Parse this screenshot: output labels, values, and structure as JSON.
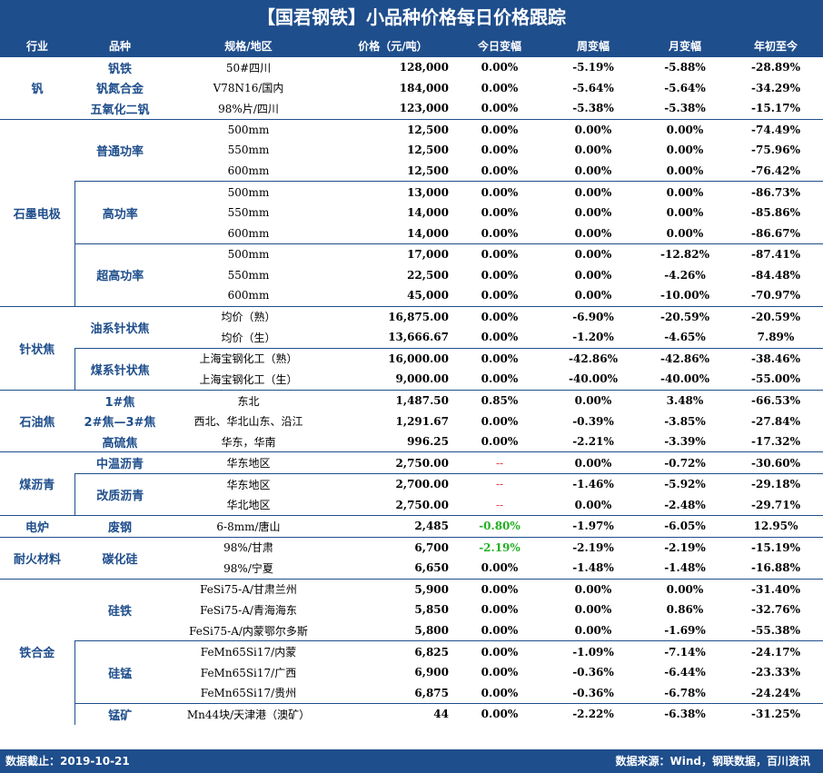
{
  "title": "【国君钢铁】小品种价格每日价格跟踪",
  "headers": [
    "行业",
    "品种",
    "规格/地区",
    "价格（元/吨）",
    "今日变幅",
    "周变幅",
    "月变幅",
    "年初至今"
  ],
  "industries": [
    "钒",
    "石墨电极",
    "针状焦",
    "石油焦",
    "煤沥青",
    "电炉",
    "耐火材料",
    "铁合金"
  ],
  "varieties": [
    "钒铁",
    "钒氮合金",
    "五氧化二钒",
    "普通功率",
    "高功率",
    "超高功率",
    "油系针状焦",
    "煤系针状焦",
    "1#焦",
    "2#焦—3#焦",
    "高硫焦",
    "中温沥青",
    "改质沥青",
    "废钢",
    "碳化硅",
    "硅铁",
    "硅锰",
    "锰矿"
  ],
  "rows": [
    {
      "spec": "50#四川",
      "price": "128,000",
      "today": "0.00%",
      "week": "-5.19%",
      "month": "-5.88%",
      "ytd": "-28.89%"
    },
    {
      "spec": "V78N16/国内",
      "price": "184,000",
      "today": "0.00%",
      "week": "-5.64%",
      "month": "-5.64%",
      "ytd": "-34.29%"
    },
    {
      "spec": "98%片/四川",
      "price": "123,000",
      "today": "0.00%",
      "week": "-5.38%",
      "month": "-5.38%",
      "ytd": "-15.17%"
    },
    {
      "spec": "500mm",
      "price": "12,500",
      "today": "0.00%",
      "week": "0.00%",
      "month": "0.00%",
      "ytd": "-74.49%"
    },
    {
      "spec": "550mm",
      "price": "12,500",
      "today": "0.00%",
      "week": "0.00%",
      "month": "0.00%",
      "ytd": "-75.96%"
    },
    {
      "spec": "600mm",
      "price": "12,500",
      "today": "0.00%",
      "week": "0.00%",
      "month": "0.00%",
      "ytd": "-76.42%"
    },
    {
      "spec": "500mm",
      "price": "13,000",
      "today": "0.00%",
      "week": "0.00%",
      "month": "0.00%",
      "ytd": "-86.73%"
    },
    {
      "spec": "550mm",
      "price": "14,000",
      "today": "0.00%",
      "week": "0.00%",
      "month": "0.00%",
      "ytd": "-85.86%"
    },
    {
      "spec": "600mm",
      "price": "14,000",
      "today": "0.00%",
      "week": "0.00%",
      "month": "0.00%",
      "ytd": "-86.67%"
    },
    {
      "spec": "500mm",
      "price": "17,000",
      "today": "0.00%",
      "week": "0.00%",
      "month": "-12.82%",
      "ytd": "-87.41%"
    },
    {
      "spec": "550mm",
      "price": "22,500",
      "today": "0.00%",
      "week": "0.00%",
      "month": "-4.26%",
      "ytd": "-84.48%"
    },
    {
      "spec": "600mm",
      "price": "45,000",
      "today": "0.00%",
      "week": "0.00%",
      "month": "-10.00%",
      "ytd": "-70.97%"
    },
    {
      "spec": "均价（熟）",
      "price": "16,875.00",
      "today": "0.00%",
      "week": "-6.90%",
      "month": "-20.59%",
      "ytd": "-20.59%"
    },
    {
      "spec": "均价（生）",
      "price": "13,666.67",
      "today": "0.00%",
      "week": "-1.20%",
      "month": "-4.65%",
      "ytd": "7.89%"
    },
    {
      "spec": "上海宝钢化工（熟）",
      "price": "16,000.00",
      "today": "0.00%",
      "week": "-42.86%",
      "month": "-42.86%",
      "ytd": "-38.46%"
    },
    {
      "spec": "上海宝钢化工（生）",
      "price": "9,000.00",
      "today": "0.00%",
      "week": "-40.00%",
      "month": "-40.00%",
      "ytd": "-55.00%"
    },
    {
      "spec": "东北",
      "price": "1,487.50",
      "today": "0.85%",
      "week": "0.00%",
      "month": "3.48%",
      "ytd": "-66.53%"
    },
    {
      "spec": "西北、华北山东、沿江",
      "price": "1,291.67",
      "today": "0.00%",
      "week": "-0.39%",
      "month": "-3.85%",
      "ytd": "-27.84%"
    },
    {
      "spec": "华东，华南",
      "price": "996.25",
      "today": "0.00%",
      "week": "-2.21%",
      "month": "-3.39%",
      "ytd": "-17.32%"
    },
    {
      "spec": "华东地区",
      "price": "2,750.00",
      "today": "--",
      "week": "0.00%",
      "month": "-0.72%",
      "ytd": "-30.60%"
    },
    {
      "spec": "华东地区",
      "price": "2,700.00",
      "today": "--",
      "week": "-1.46%",
      "month": "-5.92%",
      "ytd": "-29.18%"
    },
    {
      "spec": "华北地区",
      "price": "2,750.00",
      "today": "--",
      "week": "0.00%",
      "month": "-2.48%",
      "ytd": "-29.71%"
    },
    {
      "spec": "6-8mm/唐山",
      "price": "2,485",
      "today": "-0.80%",
      "week": "-1.97%",
      "month": "-6.05%",
      "ytd": "12.95%"
    },
    {
      "spec": "98%/甘肃",
      "price": "6,700",
      "today": "-2.19%",
      "week": "-2.19%",
      "month": "-2.19%",
      "ytd": "-15.19%"
    },
    {
      "spec": "98%/宁夏",
      "price": "6,650",
      "today": "0.00%",
      "week": "-1.48%",
      "month": "-1.48%",
      "ytd": "-16.88%"
    },
    {
      "spec": "FeSi75-A/甘肃兰州",
      "price": "5,900",
      "today": "0.00%",
      "week": "0.00%",
      "month": "0.00%",
      "ytd": "-31.40%"
    },
    {
      "spec": "FeSi75-A/青海海东",
      "price": "5,850",
      "today": "0.00%",
      "week": "0.00%",
      "month": "0.86%",
      "ytd": "-32.76%"
    },
    {
      "spec": "FeSi75-A/内蒙鄂尔多斯",
      "price": "5,800",
      "today": "0.00%",
      "week": "0.00%",
      "month": "-1.69%",
      "ytd": "-55.38%"
    },
    {
      "spec": "FeMn65Si17/内蒙",
      "price": "6,825",
      "today": "0.00%",
      "week": "-1.09%",
      "month": "-7.14%",
      "ytd": "-24.17%"
    },
    {
      "spec": "FeMn65Si17/广西",
      "price": "6,900",
      "today": "0.00%",
      "week": "-0.36%",
      "month": "-6.44%",
      "ytd": "-23.33%"
    },
    {
      "spec": "FeMn65Si17/贵州",
      "price": "6,875",
      "today": "0.00%",
      "week": "-0.36%",
      "month": "-6.78%",
      "ytd": "-24.24%"
    },
    {
      "spec": "Mn44块/天津港（澳矿）",
      "price": "44",
      "today": "0.00%",
      "week": "-2.22%",
      "month": "-6.38%",
      "ytd": "-31.25%"
    }
  ],
  "footer_left": "数据截止：2019-10-21",
  "footer_right": "数据来源：Wind，钢联数据，百川资讯",
  "colors": {
    "header_bg": "#1f4e8c",
    "dash_red": "#e03030",
    "negative_green": "#22b022"
  }
}
